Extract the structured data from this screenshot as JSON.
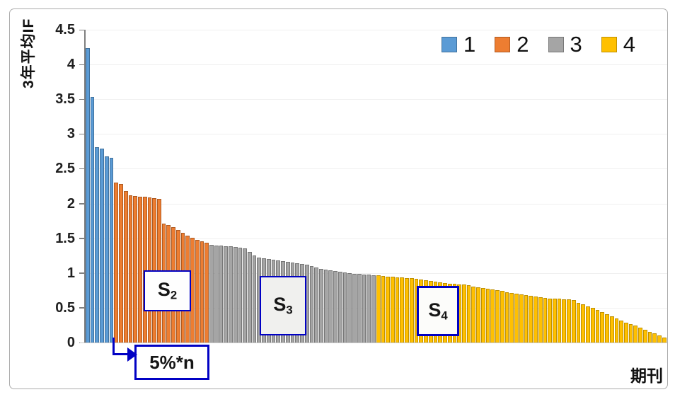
{
  "chart_data": {
    "type": "bar",
    "title": "",
    "ylabel": "3年平均IF",
    "xlabel": "期刊",
    "ylim": [
      0,
      4.5
    ],
    "ytick_labels": [
      "0",
      "0.5",
      "1",
      "1.5",
      "2",
      "2.5",
      "3",
      "3.5",
      "4",
      "4.5"
    ],
    "grid": true,
    "legend_position": "top-right",
    "accent_color": "#0101C4",
    "series": [
      {
        "name": "1",
        "color": "#5B9BD5",
        "border": "#41719C",
        "values": [
          4.24,
          3.53,
          2.81,
          2.79,
          2.68,
          2.66
        ]
      },
      {
        "name": "2",
        "color": "#ED7D31",
        "border": "#AE5A21",
        "values": [
          2.3,
          2.28,
          2.18,
          2.12,
          2.11,
          2.1,
          2.1,
          2.09,
          2.08,
          2.07,
          1.71,
          1.69,
          1.66,
          1.62,
          1.58,
          1.54,
          1.51,
          1.48,
          1.46,
          1.44
        ]
      },
      {
        "name": "3",
        "color": "#A5A5A5",
        "border": "#767676",
        "values": [
          1.41,
          1.4,
          1.39,
          1.38,
          1.38,
          1.37,
          1.36,
          1.35,
          1.3,
          1.25,
          1.22,
          1.21,
          1.2,
          1.19,
          1.18,
          1.17,
          1.16,
          1.15,
          1.14,
          1.13,
          1.12,
          1.1,
          1.08,
          1.06,
          1.05,
          1.04,
          1.03,
          1.02,
          1.01,
          1.0,
          0.99,
          0.99,
          0.98,
          0.98,
          0.97
        ]
      },
      {
        "name": "4",
        "color": "#FFC000",
        "border": "#BF9000",
        "values": [
          0.97,
          0.96,
          0.95,
          0.95,
          0.94,
          0.94,
          0.93,
          0.93,
          0.92,
          0.91,
          0.9,
          0.89,
          0.88,
          0.87,
          0.86,
          0.85,
          0.85,
          0.84,
          0.83,
          0.82,
          0.8,
          0.79,
          0.78,
          0.77,
          0.76,
          0.75,
          0.74,
          0.72,
          0.71,
          0.7,
          0.69,
          0.68,
          0.67,
          0.66,
          0.65,
          0.64,
          0.63,
          0.63,
          0.63,
          0.62,
          0.62,
          0.61,
          0.57,
          0.55,
          0.52,
          0.5,
          0.47,
          0.44,
          0.41,
          0.38,
          0.35,
          0.32,
          0.29,
          0.26,
          0.24,
          0.21,
          0.18,
          0.15,
          0.13,
          0.1,
          0.07
        ]
      }
    ],
    "annotations": {
      "s2": {
        "base": "S",
        "sub": "2"
      },
      "s3": {
        "base": "S",
        "sub": "3"
      },
      "s4": {
        "base": "S",
        "sub": "4"
      },
      "pct": {
        "text": "5%*n"
      }
    }
  }
}
